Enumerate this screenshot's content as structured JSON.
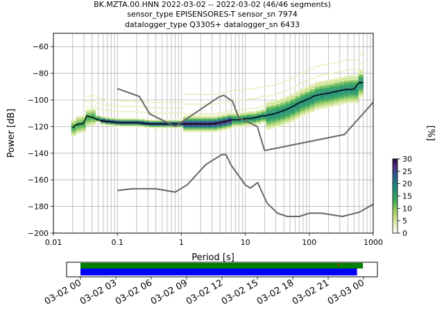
{
  "header": {
    "line1": "BK.MZTA.00.HNN   2022-03-02 -- 2022-03-02  (46/46 segments)",
    "line2": "sensor_type EPISENSORES-T sensor_sn 7974",
    "line3": "datalogger_type Q330S+ datalogger_sn 6433"
  },
  "colorbar": {
    "label": "[%]",
    "ticks": [
      "0",
      "5",
      "10",
      "15",
      "20",
      "25",
      "30"
    ],
    "range": [
      0,
      30
    ]
  },
  "timeline": {
    "ticks": [
      "03-02 00",
      "03-02 03",
      "03-02 06",
      "03-02 09",
      "03-02 12",
      "03-02 15",
      "03-02 18",
      "03-02 21",
      "03-03 00"
    ],
    "bars": [
      {
        "name": "green",
        "color": "#008000",
        "start_hours": 0.0,
        "end_hours": 23.95
      },
      {
        "name": "blue",
        "color": "#0000ff",
        "start_hours": 0.0,
        "end_hours": 23.45
      }
    ],
    "marker_hours": 21.8
  },
  "chart_data": {
    "type": "heatmap",
    "title": "",
    "xlabel": "Period [s]",
    "ylabel": "Power [dB]",
    "xscale": "log",
    "xlim": [
      0.01,
      1000
    ],
    "ylim": [
      -200,
      -50
    ],
    "xtick_labels": [
      "0.01",
      "0.1",
      "1",
      "10",
      "100",
      "1000"
    ],
    "ytick_labels": [
      "−200",
      "−180",
      "−160",
      "−140",
      "−120",
      "−100",
      "−80",
      "−60"
    ],
    "grid": true,
    "colormap": "cubehelix_r",
    "series": [
      {
        "name": "mode",
        "color": "#000000",
        "x": [
          0.02,
          0.022,
          0.025,
          0.028,
          0.03,
          0.033,
          0.04,
          0.05,
          0.06,
          0.08,
          0.1,
          0.15,
          0.2,
          0.3,
          0.5,
          0.8,
          1,
          1.5,
          2,
          3,
          4,
          5,
          6,
          7,
          8,
          10,
          12,
          15,
          18,
          20,
          25,
          30,
          40,
          50,
          60,
          70,
          80,
          100,
          120,
          150,
          200,
          300,
          400,
          500,
          600,
          700
        ],
        "y": [
          -121,
          -119,
          -118,
          -118,
          -117,
          -112,
          -113,
          -115,
          -116,
          -116.5,
          -117,
          -117,
          -117,
          -118,
          -118,
          -118,
          -118,
          -118,
          -118,
          -118,
          -117,
          -116,
          -115,
          -115,
          -115,
          -114,
          -114,
          -113,
          -112,
          -112,
          -111,
          -110,
          -108,
          -106,
          -104,
          -102,
          -101,
          -99,
          -97,
          -96,
          -95,
          -93,
          -92,
          -92,
          -87,
          -87
        ]
      },
      {
        "name": "noise-model-high",
        "color": "#666666",
        "x": [
          0.1,
          0.22,
          0.32,
          0.8,
          3.8,
          4.6,
          6.3,
          7.9,
          15.4,
          20,
          354.8,
          10000
        ],
        "y": [
          -91.5,
          -97.4,
          -110.5,
          -120,
          -98,
          -96.5,
          -101,
          -113.5,
          -120,
          -138,
          -126,
          -48
        ]
      },
      {
        "name": "noise-model-low",
        "color": "#666666",
        "x": [
          0.1,
          0.17,
          0.4,
          0.8,
          1.24,
          2.4,
          4.3,
          5,
          6,
          10,
          12,
          15.6,
          21.9,
          31.6,
          45,
          70,
          101,
          154,
          328,
          600,
          10000
        ],
        "y": [
          -168,
          -166.7,
          -166.7,
          -169.2,
          -163.7,
          -148.6,
          -141.1,
          -141.1,
          -149,
          -163.8,
          -166.2,
          -162.1,
          -177.5,
          -185,
          -187.5,
          -187.5,
          -185,
          -185,
          -187.5,
          -184.4,
          -151.5
        ]
      }
    ]
  }
}
